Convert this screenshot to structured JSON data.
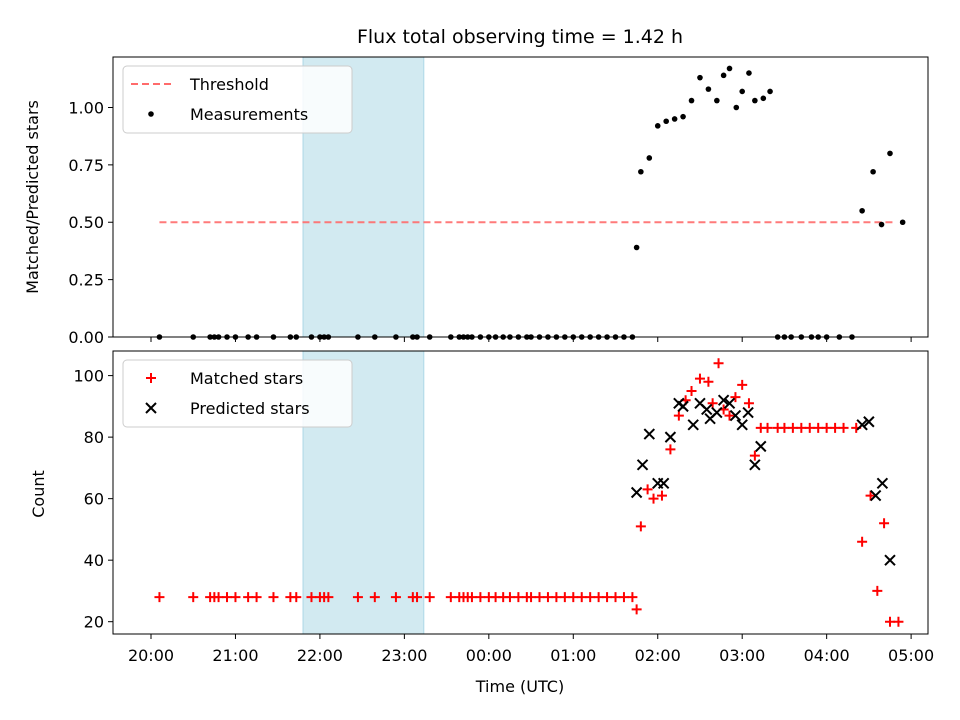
{
  "chart_data": [
    {
      "type": "scatter",
      "title": "Flux total observing time = 1.42 h",
      "xlabel": "",
      "ylabel": "Matched/Predicted stars",
      "x_unit": "hours since 20:00 UTC",
      "xlim": [
        -0.45,
        9.2
      ],
      "ylim": [
        0.0,
        1.22
      ],
      "y_ticks": [
        0.0,
        0.25,
        0.5,
        0.75,
        1.0
      ],
      "y_tick_labels": [
        "0.00",
        "0.25",
        "0.50",
        "0.75",
        "1.00"
      ],
      "x_tick_labels": [
        "20:00",
        "21:00",
        "22:00",
        "23:00",
        "00:00",
        "01:00",
        "02:00",
        "03:00",
        "04:00",
        "05:00"
      ],
      "shaded_interval": [
        1.8,
        3.23
      ],
      "shaded_color": "#add8e6",
      "legend_position": "upper left",
      "series": [
        {
          "name": "Threshold",
          "kind": "line",
          "style": "dashed",
          "color": "#ff6b6b",
          "x": [
            0.1,
            8.8
          ],
          "y": [
            0.5,
            0.5
          ]
        },
        {
          "name": "Measurements",
          "kind": "scatter",
          "color": "#000000",
          "x": [
            0.1,
            0.5,
            0.7,
            0.75,
            0.8,
            0.9,
            1.0,
            1.15,
            1.25,
            1.45,
            1.65,
            1.72,
            1.9,
            2.0,
            2.05,
            2.1,
            2.45,
            2.65,
            2.9,
            3.1,
            3.15,
            3.3,
            3.55,
            3.65,
            3.7,
            3.75,
            3.8,
            3.9,
            4.0,
            4.08,
            4.17,
            4.25,
            4.35,
            4.45,
            4.5,
            4.6,
            4.7,
            4.8,
            4.9,
            5.0,
            5.1,
            5.2,
            5.3,
            5.4,
            5.5,
            5.6,
            5.7,
            5.75,
            5.8,
            5.9,
            6.0,
            6.1,
            6.2,
            6.3,
            6.4,
            6.5,
            6.6,
            6.7,
            6.78,
            6.85,
            6.93,
            7.0,
            7.08,
            7.15,
            7.25,
            7.33,
            7.42,
            7.5,
            7.58,
            7.7,
            7.82,
            7.9,
            8.0,
            8.15,
            8.3,
            8.42,
            8.55,
            8.65,
            8.75,
            8.9
          ],
          "y": [
            0.0,
            0.0,
            0.0,
            0.0,
            0.0,
            0.0,
            0.0,
            0.0,
            0.0,
            0.0,
            0.0,
            0.0,
            0.0,
            0.0,
            0.0,
            0.0,
            0.0,
            0.0,
            0.0,
            0.0,
            0.0,
            0.0,
            0.0,
            0.0,
            0.0,
            0.0,
            0.0,
            0.0,
            0.0,
            0.0,
            0.0,
            0.0,
            0.0,
            0.0,
            0.0,
            0.0,
            0.0,
            0.0,
            0.0,
            0.0,
            0.0,
            0.0,
            0.0,
            0.0,
            0.0,
            0.0,
            0.0,
            0.39,
            0.72,
            0.78,
            0.92,
            0.94,
            0.95,
            0.96,
            1.03,
            1.13,
            1.08,
            1.03,
            1.14,
            1.17,
            1.0,
            1.07,
            1.15,
            1.03,
            1.04,
            1.07,
            0.0,
            0.0,
            0.0,
            0.0,
            0.0,
            0.0,
            0.0,
            0.0,
            0.0,
            0.55,
            0.72,
            0.49,
            0.8,
            0.5
          ]
        }
      ]
    },
    {
      "type": "scatter",
      "title": "",
      "xlabel": "Time (UTC)",
      "ylabel": "Count",
      "x_unit": "hours since 20:00 UTC",
      "xlim": [
        -0.45,
        9.2
      ],
      "ylim": [
        16,
        108
      ],
      "y_ticks": [
        20,
        40,
        60,
        80,
        100
      ],
      "y_tick_labels": [
        "20",
        "40",
        "60",
        "80",
        "100"
      ],
      "x_tick_labels": [
        "20:00",
        "21:00",
        "22:00",
        "23:00",
        "00:00",
        "01:00",
        "02:00",
        "03:00",
        "04:00",
        "05:00"
      ],
      "shaded_interval": [
        1.8,
        3.23
      ],
      "shaded_color": "#add8e6",
      "legend_position": "upper left",
      "series": [
        {
          "name": "Matched stars",
          "marker": "plus",
          "color": "#ff0000",
          "x": [
            0.1,
            0.5,
            0.7,
            0.75,
            0.8,
            0.9,
            1.0,
            1.15,
            1.25,
            1.45,
            1.65,
            1.72,
            1.9,
            2.0,
            2.05,
            2.1,
            2.45,
            2.65,
            2.9,
            3.1,
            3.15,
            3.3,
            3.55,
            3.65,
            3.7,
            3.75,
            3.8,
            3.9,
            4.0,
            4.08,
            4.17,
            4.25,
            4.35,
            4.45,
            4.5,
            4.6,
            4.7,
            4.8,
            4.9,
            5.0,
            5.1,
            5.2,
            5.3,
            5.4,
            5.5,
            5.6,
            5.7,
            5.75,
            5.8,
            5.88,
            5.95,
            6.05,
            6.15,
            6.25,
            6.33,
            6.4,
            6.5,
            6.6,
            6.65,
            6.72,
            6.78,
            6.85,
            6.92,
            7.0,
            7.08,
            7.15,
            7.22,
            7.3,
            7.42,
            7.5,
            7.6,
            7.7,
            7.8,
            7.9,
            8.0,
            8.1,
            8.2,
            8.35,
            8.42,
            8.52,
            8.6,
            8.68,
            8.75,
            8.85
          ],
          "y": [
            28,
            28,
            28,
            28,
            28,
            28,
            28,
            28,
            28,
            28,
            28,
            28,
            28,
            28,
            28,
            28,
            28,
            28,
            28,
            28,
            28,
            28,
            28,
            28,
            28,
            28,
            28,
            28,
            28,
            28,
            28,
            28,
            28,
            28,
            28,
            28,
            28,
            28,
            28,
            28,
            28,
            28,
            28,
            28,
            28,
            28,
            28,
            24,
            51,
            63,
            60,
            61,
            76,
            87,
            92,
            95,
            99,
            98,
            91,
            104,
            89,
            87,
            93,
            97,
            91,
            74,
            83,
            83,
            83,
            83,
            83,
            83,
            83,
            83,
            83,
            83,
            83,
            83,
            46,
            61,
            30,
            52,
            20,
            20
          ]
        },
        {
          "name": "Predicted stars",
          "marker": "x",
          "color": "#000000",
          "x": [
            5.75,
            5.82,
            5.9,
            6.0,
            6.07,
            6.15,
            6.25,
            6.3,
            6.42,
            6.5,
            6.58,
            6.62,
            6.7,
            6.78,
            6.85,
            6.92,
            7.0,
            7.07,
            7.15,
            7.22,
            8.42,
            8.5,
            8.58,
            8.66,
            8.75
          ],
          "y": [
            62,
            71,
            81,
            65,
            65,
            80,
            91,
            90,
            84,
            91,
            89,
            86,
            88,
            92,
            91,
            87,
            84,
            88,
            71,
            77,
            84,
            85,
            61,
            65,
            40
          ]
        }
      ]
    }
  ]
}
